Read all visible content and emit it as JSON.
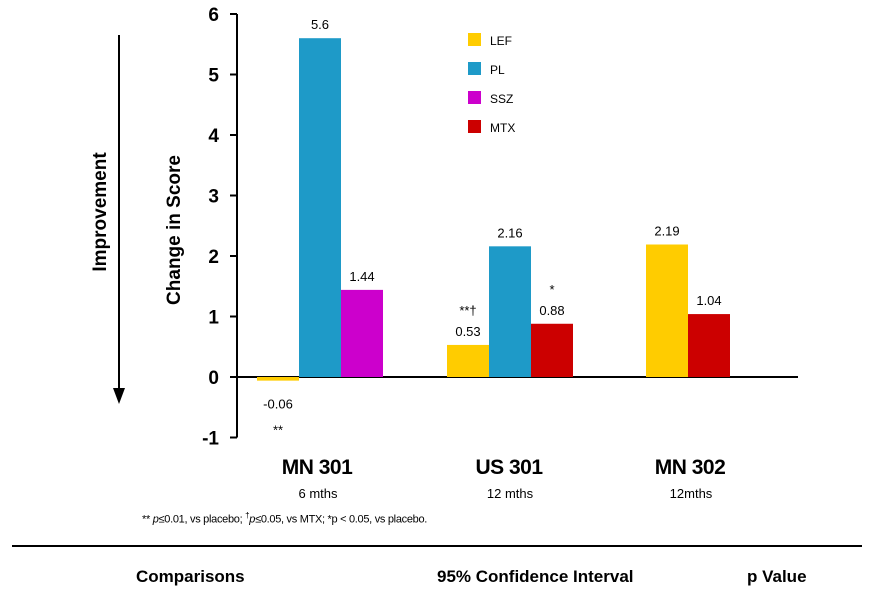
{
  "chart_data": {
    "type": "bar",
    "title": "",
    "ylabel": "Change in Score",
    "side_label": "Improvement",
    "ylim": [
      -1,
      6
    ],
    "yticks": [
      "-1",
      "0",
      "1",
      "2",
      "3",
      "4",
      "5",
      "6"
    ],
    "legend_position": "top-center",
    "groups": [
      {
        "label": "MN 301",
        "sublabel": "6 mths",
        "bars": [
          {
            "series": "LEF",
            "value": -0.06,
            "label": "-0.06",
            "annotation": "**",
            "annotation_position": "below"
          },
          {
            "series": "PL",
            "value": 5.6,
            "label": "5.6",
            "annotation": ""
          },
          {
            "series": "SSZ",
            "value": 1.44,
            "label": "1.44",
            "annotation": ""
          }
        ]
      },
      {
        "label": "US 301",
        "sublabel": "12 mths",
        "bars": [
          {
            "series": "LEF",
            "value": 0.53,
            "label": "0.53",
            "annotation": "**†",
            "annotation_position": "above"
          },
          {
            "series": "PL",
            "value": 2.16,
            "label": "2.16",
            "annotation": ""
          },
          {
            "series": "MTX",
            "value": 0.88,
            "label": "0.88",
            "annotation": "*",
            "annotation_position": "above"
          }
        ]
      },
      {
        "label": "MN 302",
        "sublabel": "12mths",
        "bars": [
          {
            "series": "LEF",
            "value": 2.19,
            "label": "2.19",
            "annotation": ""
          },
          {
            "series": "MTX",
            "value": 1.04,
            "label": "1.04",
            "annotation": ""
          }
        ]
      }
    ],
    "series": [
      {
        "name": "LEF",
        "color": "#FFCC00"
      },
      {
        "name": "PL",
        "color": "#1E9AC8"
      },
      {
        "name": "SSZ",
        "color": "#CC00CC"
      },
      {
        "name": "MTX",
        "color": "#CC0000"
      }
    ]
  },
  "footnote": {
    "part1": "** ",
    "p1": "p",
    "part2": "≤0.01, vs placebo; ",
    "dagger": "†",
    "p2": "p",
    "part3": "≤0.05, vs MTX; *p < 0.05, vs placebo."
  },
  "table_header": {
    "comparisons": "Comparisons",
    "confidence_interval": "95% Confidence Interval",
    "p_value": "p Value"
  }
}
